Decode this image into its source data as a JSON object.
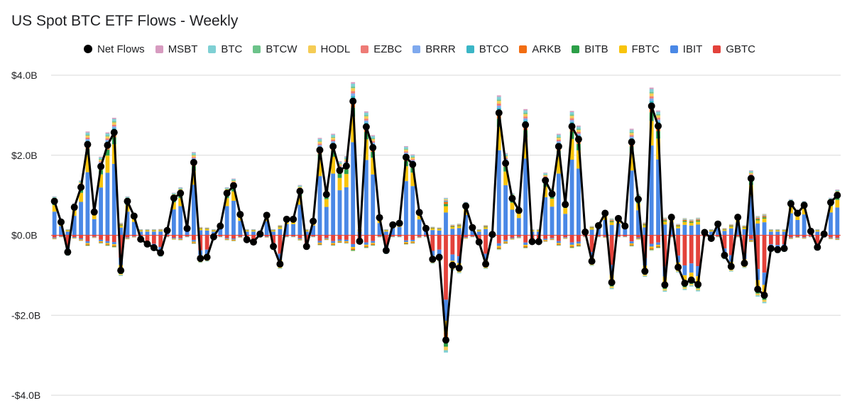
{
  "chart_data": {
    "type": "bar",
    "stacked": true,
    "overlay": "line",
    "title": "US Spot BTC ETF Flows - Weekly",
    "xlabel": "",
    "ylabel": "",
    "ylim": [
      -4.0,
      4.0
    ],
    "yticks": [
      4.0,
      2.0,
      0.0,
      -2.0,
      -4.0
    ],
    "ytick_labels": [
      "$4.0B",
      "$2.0B",
      "$0.0B",
      "-$2.0B",
      "-$4.0B"
    ],
    "grid": true,
    "legend_position": "top",
    "legend": [
      "Net Flows",
      "MSBT",
      "BTC",
      "BTCW",
      "HODL",
      "EZBC",
      "BRRR",
      "BTCO",
      "ARKB",
      "BITB",
      "FBTC",
      "IBIT",
      "GBTC"
    ],
    "colors": {
      "Net Flows": "#000000",
      "MSBT": "#d79bc0",
      "BTC": "#7fd0d4",
      "BTCW": "#6cc38a",
      "HODL": "#f5cc55",
      "EZBC": "#ee7b76",
      "BRRR": "#7fa9ee",
      "BTCO": "#3bb6c6",
      "ARKB": "#f26d12",
      "BITB": "#2c9f48",
      "FBTC": "#f8c40c",
      "IBIT": "#4a88e6",
      "GBTC": "#e3423b"
    },
    "net_flows": [
      0.85,
      0.33,
      -0.42,
      0.7,
      1.2,
      2.27,
      0.58,
      1.72,
      2.25,
      2.57,
      -0.88,
      0.85,
      0.48,
      -0.1,
      -0.22,
      -0.31,
      -0.44,
      0.12,
      0.93,
      1.05,
      0.17,
      1.82,
      -0.58,
      -0.55,
      -0.04,
      0.23,
      1.05,
      1.24,
      0.52,
      -0.11,
      -0.17,
      0.03,
      0.5,
      -0.28,
      -0.72,
      0.4,
      0.4,
      1.1,
      -0.28,
      0.35,
      2.13,
      1.02,
      2.22,
      1.62,
      1.73,
      3.35,
      -0.15,
      2.71,
      2.19,
      0.44,
      -0.38,
      0.26,
      0.3,
      1.95,
      1.77,
      0.57,
      0.17,
      -0.6,
      -0.55,
      -2.62,
      -0.75,
      -0.82,
      0.73,
      0.19,
      -0.17,
      -0.72,
      0.02,
      3.06,
      1.8,
      0.92,
      0.62,
      2.76,
      -0.16,
      -0.16,
      1.37,
      1.03,
      2.22,
      0.77,
      2.72,
      2.4,
      0.08,
      -0.65,
      0.24,
      0.55,
      -1.18,
      0.42,
      0.23,
      2.33,
      0.9,
      -0.9,
      3.23,
      2.73,
      -1.24,
      0.45,
      -0.8,
      -1.2,
      -1.12,
      -1.23,
      0.07,
      -0.08,
      0.28,
      -0.5,
      -0.78,
      0.45,
      -0.7,
      1.42,
      -1.35,
      -1.5,
      -0.33,
      -0.36,
      -0.33,
      0.79,
      0.55,
      0.75,
      0.1,
      -0.3,
      0.03,
      0.82,
      1.0
    ]
  }
}
